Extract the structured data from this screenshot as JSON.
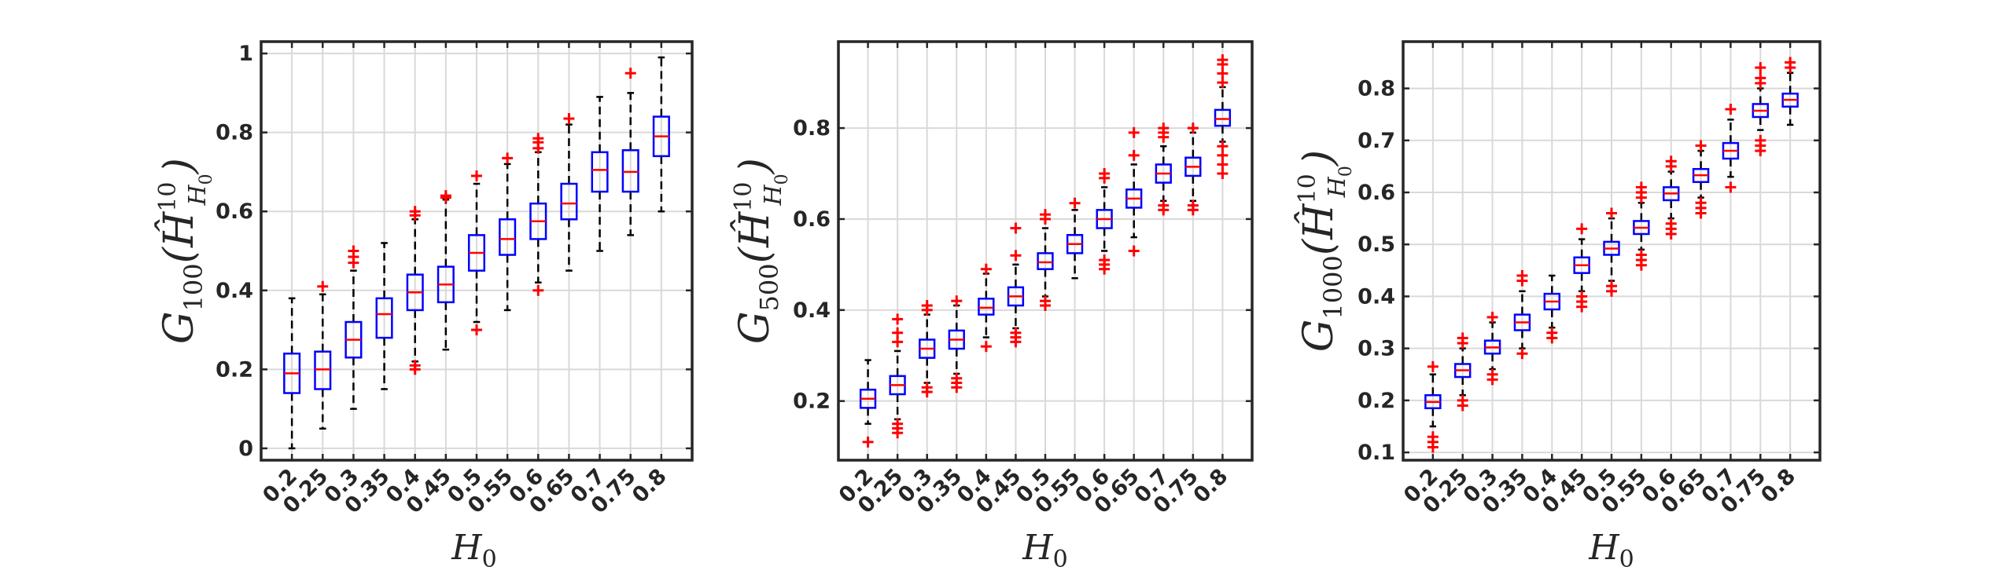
{
  "colors": {
    "box": "#0000ff",
    "median": "#ff0000",
    "whisker": "#000000",
    "outlier": "#ff0000",
    "grid": "#d9d9d9",
    "axis": "#262626"
  },
  "chart_data": [
    {
      "type": "box",
      "xlabel": {
        "base": "H",
        "sub": "0"
      },
      "ylabel": {
        "base": "G",
        "sub": "100",
        "arg_base": "Ĥ",
        "arg_sup": "10",
        "arg_sub": "H",
        "arg_subsub": "0"
      },
      "categories": [
        "0.2",
        "0.25",
        "0.3",
        "0.35",
        "0.4",
        "0.45",
        "0.5",
        "0.55",
        "0.6",
        "0.65",
        "0.7",
        "0.75",
        "0.8"
      ],
      "ylim": [
        -0.03,
        1.03
      ],
      "yticks": [
        0,
        0.2,
        0.4,
        0.6,
        0.8,
        1
      ],
      "ytick_labels": [
        "0",
        "0.2",
        "0.4",
        "0.6",
        "0.8",
        "1"
      ],
      "grid": true,
      "boxes": [
        {
          "min": 0.0,
          "q1": 0.14,
          "median": 0.19,
          "q3": 0.24,
          "max": 0.38,
          "outliers": []
        },
        {
          "min": 0.05,
          "q1": 0.15,
          "median": 0.2,
          "q3": 0.245,
          "max": 0.39,
          "outliers": [
            0.41
          ]
        },
        {
          "min": 0.1,
          "q1": 0.23,
          "median": 0.275,
          "q3": 0.32,
          "max": 0.45,
          "outliers": [
            0.47,
            0.485,
            0.5
          ]
        },
        {
          "min": 0.15,
          "q1": 0.28,
          "median": 0.34,
          "q3": 0.38,
          "max": 0.52,
          "outliers": []
        },
        {
          "min": 0.22,
          "q1": 0.35,
          "median": 0.395,
          "q3": 0.44,
          "max": 0.58,
          "outliers": [
            0.2,
            0.21,
            0.59,
            0.6
          ]
        },
        {
          "min": 0.25,
          "q1": 0.37,
          "median": 0.415,
          "q3": 0.46,
          "max": 0.63,
          "outliers": [
            0.635,
            0.64
          ]
        },
        {
          "min": 0.32,
          "q1": 0.45,
          "median": 0.495,
          "q3": 0.54,
          "max": 0.67,
          "outliers": [
            0.3,
            0.69
          ]
        },
        {
          "min": 0.35,
          "q1": 0.49,
          "median": 0.53,
          "q3": 0.58,
          "max": 0.72,
          "outliers": [
            0.735
          ]
        },
        {
          "min": 0.42,
          "q1": 0.53,
          "median": 0.575,
          "q3": 0.62,
          "max": 0.75,
          "outliers": [
            0.4,
            0.76,
            0.775,
            0.785
          ]
        },
        {
          "min": 0.45,
          "q1": 0.58,
          "median": 0.62,
          "q3": 0.67,
          "max": 0.82,
          "outliers": [
            0.835
          ]
        },
        {
          "min": 0.5,
          "q1": 0.65,
          "median": 0.705,
          "q3": 0.75,
          "max": 0.89,
          "outliers": []
        },
        {
          "min": 0.54,
          "q1": 0.65,
          "median": 0.7,
          "q3": 0.755,
          "max": 0.9,
          "outliers": [
            0.95
          ]
        },
        {
          "min": 0.6,
          "q1": 0.74,
          "median": 0.79,
          "q3": 0.84,
          "max": 0.99,
          "outliers": []
        }
      ]
    },
    {
      "type": "box",
      "xlabel": {
        "base": "H",
        "sub": "0"
      },
      "ylabel": {
        "base": "G",
        "sub": "500",
        "arg_base": "Ĥ",
        "arg_sup": "10",
        "arg_sub": "H",
        "arg_subsub": "0"
      },
      "categories": [
        "0.2",
        "0.25",
        "0.3",
        "0.35",
        "0.4",
        "0.45",
        "0.5",
        "0.55",
        "0.6",
        "0.65",
        "0.7",
        "0.75",
        "0.8"
      ],
      "ylim": [
        0.07,
        0.99
      ],
      "yticks": [
        0.2,
        0.4,
        0.6,
        0.8
      ],
      "ytick_labels": [
        "0.2",
        "0.4",
        "0.6",
        "0.8"
      ],
      "grid": true,
      "boxes": [
        {
          "min": 0.15,
          "q1": 0.185,
          "median": 0.205,
          "q3": 0.225,
          "max": 0.29,
          "outliers": [
            0.11
          ]
        },
        {
          "min": 0.16,
          "q1": 0.215,
          "median": 0.235,
          "q3": 0.255,
          "max": 0.31,
          "outliers": [
            0.13,
            0.14,
            0.15,
            0.33,
            0.35,
            0.38
          ]
        },
        {
          "min": 0.24,
          "q1": 0.295,
          "median": 0.315,
          "q3": 0.335,
          "max": 0.39,
          "outliers": [
            0.22,
            0.23,
            0.4,
            0.41
          ]
        },
        {
          "min": 0.26,
          "q1": 0.315,
          "median": 0.335,
          "q3": 0.355,
          "max": 0.41,
          "outliers": [
            0.23,
            0.24,
            0.25,
            0.42
          ]
        },
        {
          "min": 0.34,
          "q1": 0.39,
          "median": 0.405,
          "q3": 0.425,
          "max": 0.48,
          "outliers": [
            0.32,
            0.49
          ]
        },
        {
          "min": 0.36,
          "q1": 0.41,
          "median": 0.43,
          "q3": 0.45,
          "max": 0.5,
          "outliers": [
            0.33,
            0.34,
            0.35,
            0.52,
            0.58
          ]
        },
        {
          "min": 0.43,
          "q1": 0.49,
          "median": 0.505,
          "q3": 0.525,
          "max": 0.58,
          "outliers": [
            0.41,
            0.42,
            0.6,
            0.61
          ]
        },
        {
          "min": 0.47,
          "q1": 0.525,
          "median": 0.545,
          "q3": 0.565,
          "max": 0.62,
          "outliers": [
            0.635
          ]
        },
        {
          "min": 0.53,
          "q1": 0.58,
          "median": 0.6,
          "q3": 0.62,
          "max": 0.67,
          "outliers": [
            0.49,
            0.5,
            0.51,
            0.69,
            0.7
          ]
        },
        {
          "min": 0.56,
          "q1": 0.625,
          "median": 0.645,
          "q3": 0.665,
          "max": 0.72,
          "outliers": [
            0.53,
            0.74,
            0.79
          ]
        },
        {
          "min": 0.64,
          "q1": 0.68,
          "median": 0.7,
          "q3": 0.72,
          "max": 0.76,
          "outliers": [
            0.62,
            0.63,
            0.78,
            0.79,
            0.8
          ]
        },
        {
          "min": 0.64,
          "q1": 0.695,
          "median": 0.715,
          "q3": 0.735,
          "max": 0.79,
          "outliers": [
            0.62,
            0.63,
            0.8
          ]
        },
        {
          "min": 0.77,
          "q1": 0.805,
          "median": 0.82,
          "q3": 0.84,
          "max": 0.89,
          "outliers": [
            0.7,
            0.72,
            0.74,
            0.76,
            0.9,
            0.92,
            0.94,
            0.95
          ]
        }
      ]
    },
    {
      "type": "box",
      "xlabel": {
        "base": "H",
        "sub": "0"
      },
      "ylabel": {
        "base": "G",
        "sub": "1000",
        "arg_base": "Ĥ",
        "arg_sup": "10",
        "arg_sub": "H",
        "arg_subsub": "0"
      },
      "categories": [
        "0.2",
        "0.25",
        "0.3",
        "0.35",
        "0.4",
        "0.45",
        "0.5",
        "0.55",
        "0.6",
        "0.65",
        "0.7",
        "0.75",
        "0.8"
      ],
      "ylim": [
        0.085,
        0.89
      ],
      "yticks": [
        0.1,
        0.2,
        0.3,
        0.4,
        0.5,
        0.6,
        0.7,
        0.8
      ],
      "ytick_labels": [
        "0.1",
        "0.2",
        "0.3",
        "0.4",
        "0.5",
        "0.6",
        "0.7",
        "0.8"
      ],
      "grid": true,
      "boxes": [
        {
          "min": 0.15,
          "q1": 0.185,
          "median": 0.197,
          "q3": 0.21,
          "max": 0.25,
          "outliers": [
            0.11,
            0.12,
            0.13,
            0.265
          ]
        },
        {
          "min": 0.21,
          "q1": 0.245,
          "median": 0.258,
          "q3": 0.27,
          "max": 0.3,
          "outliers": [
            0.19,
            0.2,
            0.31,
            0.32
          ]
        },
        {
          "min": 0.26,
          "q1": 0.29,
          "median": 0.302,
          "q3": 0.315,
          "max": 0.35,
          "outliers": [
            0.24,
            0.25,
            0.36
          ]
        },
        {
          "min": 0.3,
          "q1": 0.335,
          "median": 0.35,
          "q3": 0.365,
          "max": 0.41,
          "outliers": [
            0.29,
            0.43,
            0.44
          ]
        },
        {
          "min": 0.34,
          "q1": 0.375,
          "median": 0.39,
          "q3": 0.405,
          "max": 0.44,
          "outliers": [
            0.32,
            0.33
          ]
        },
        {
          "min": 0.41,
          "q1": 0.445,
          "median": 0.46,
          "q3": 0.475,
          "max": 0.51,
          "outliers": [
            0.38,
            0.39,
            0.4,
            0.53
          ]
        },
        {
          "min": 0.43,
          "q1": 0.48,
          "median": 0.492,
          "q3": 0.505,
          "max": 0.55,
          "outliers": [
            0.41,
            0.42,
            0.56
          ]
        },
        {
          "min": 0.49,
          "q1": 0.52,
          "median": 0.532,
          "q3": 0.545,
          "max": 0.58,
          "outliers": [
            0.46,
            0.47,
            0.48,
            0.59,
            0.6,
            0.61
          ]
        },
        {
          "min": 0.55,
          "q1": 0.585,
          "median": 0.598,
          "q3": 0.61,
          "max": 0.64,
          "outliers": [
            0.52,
            0.53,
            0.54,
            0.65,
            0.66
          ]
        },
        {
          "min": 0.59,
          "q1": 0.62,
          "median": 0.633,
          "q3": 0.645,
          "max": 0.68,
          "outliers": [
            0.56,
            0.57,
            0.58,
            0.69
          ]
        },
        {
          "min": 0.63,
          "q1": 0.665,
          "median": 0.68,
          "q3": 0.695,
          "max": 0.74,
          "outliers": [
            0.61,
            0.76
          ]
        },
        {
          "min": 0.72,
          "q1": 0.745,
          "median": 0.757,
          "q3": 0.77,
          "max": 0.8,
          "outliers": [
            0.68,
            0.69,
            0.7,
            0.81,
            0.82,
            0.84
          ]
        },
        {
          "min": 0.73,
          "q1": 0.765,
          "median": 0.778,
          "q3": 0.79,
          "max": 0.83,
          "outliers": [
            0.84,
            0.85
          ]
        }
      ]
    }
  ]
}
